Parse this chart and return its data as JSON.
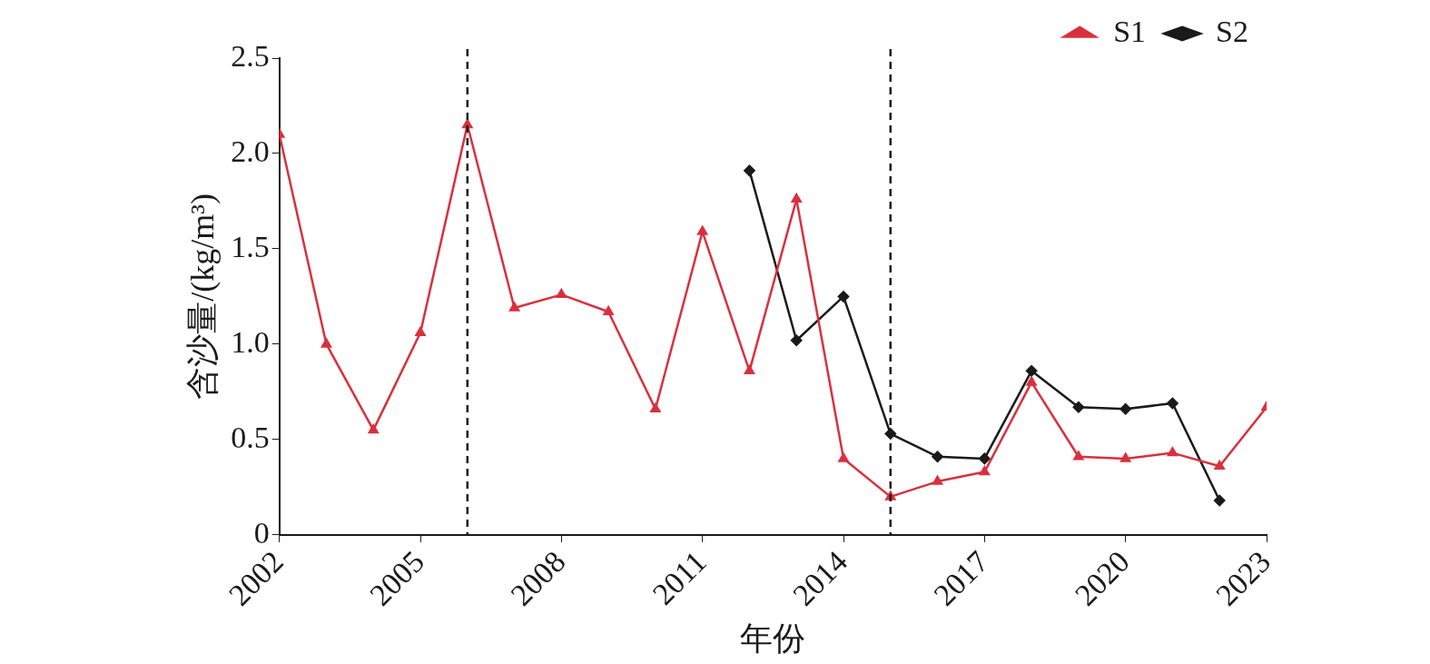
{
  "chart_data": {
    "type": "line",
    "xlabel": "年份",
    "ylabel": "含沙量/(kg/m³)",
    "x": [
      2002,
      2003,
      2004,
      2005,
      2006,
      2007,
      2008,
      2009,
      2010,
      2011,
      2012,
      2013,
      2014,
      2015,
      2016,
      2017,
      2018,
      2019,
      2020,
      2021,
      2022,
      2023
    ],
    "series": [
      {
        "name": "S1",
        "color": "#d9303e",
        "marker": "triangle",
        "values": [
          2.1,
          1.0,
          0.55,
          1.06,
          2.15,
          1.19,
          1.26,
          1.17,
          0.66,
          1.59,
          0.86,
          1.76,
          0.4,
          0.2,
          0.28,
          0.33,
          0.8,
          0.41,
          0.4,
          0.43,
          0.36,
          0.67
        ]
      },
      {
        "name": "S2",
        "color": "#1a1a1a",
        "marker": "diamond",
        "x": [
          2012,
          2013,
          2014,
          2015,
          2016,
          2017,
          2018,
          2019,
          2020,
          2021,
          2022
        ],
        "values": [
          1.91,
          1.02,
          1.25,
          0.53,
          0.41,
          0.4,
          0.86,
          0.67,
          0.66,
          0.69,
          0.18
        ]
      }
    ],
    "xlim": [
      2002,
      2023
    ],
    "xticks": [
      2002,
      2005,
      2008,
      2011,
      2014,
      2017,
      2020,
      2023
    ],
    "ylim": [
      0,
      2.5
    ],
    "yticks": [
      0,
      0.5,
      {
        "value": 1.0,
        "label": "1.0"
      },
      1.5,
      {
        "value": 2.0,
        "label": "2.0"
      },
      2.5
    ],
    "ref_lines": [
      {
        "axis": "x",
        "value": 2006,
        "color": "#1a1a1a",
        "line_style": "dashed"
      },
      {
        "axis": "x",
        "value": 2015,
        "color": "#1a1a1a",
        "line_style": "dashed"
      }
    ],
    "grid": false,
    "legend": "top right",
    "line_style": "solid"
  }
}
